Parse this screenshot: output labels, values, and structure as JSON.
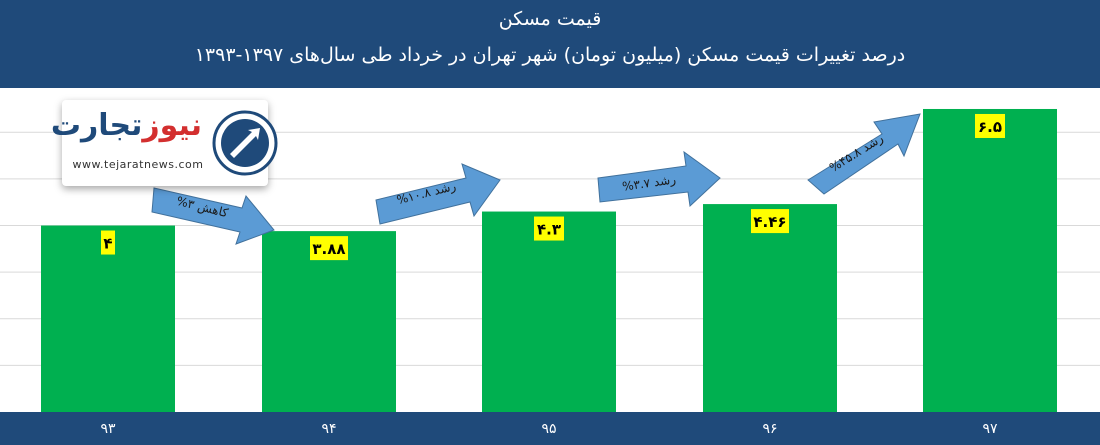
{
  "header": {
    "title": "قیمت مسکن",
    "subtitle": "درصد تغییرات قیمت مسکن (میلیون تومان) شهر تهران در خرداد طی سال‌های ۱۳۹۷-۱۳۹۳"
  },
  "logo": {
    "name_part1": "تجارت",
    "name_part2": "نیوز",
    "url": "www.tejaratnews.com"
  },
  "colors": {
    "header_bg": "#1f4a7a",
    "bar": "#00b050",
    "label_bg": "#ffff00",
    "arrow": "#5b9bd5"
  },
  "chart_data": {
    "type": "bar",
    "categories": [
      "۹۳",
      "۹۴",
      "۹۵",
      "۹۶",
      "۹۷"
    ],
    "values": [
      4,
      3.88,
      4.3,
      4.46,
      6.5
    ],
    "value_labels": [
      "۴",
      "۳.۸۸",
      "۴.۳",
      "۴.۴۶",
      "۶.۵"
    ],
    "title": "قیمت مسکن",
    "subtitle": "درصد تغییرات قیمت مسکن (میلیون تومان) شهر تهران در خرداد طی سال‌های ۱۳۹۷-۱۳۹۳",
    "xlabel": "",
    "ylabel": "",
    "ylim": [
      0,
      6.95
    ],
    "grid": true,
    "annotations": [
      {
        "text": "کاهش ۳%",
        "from": "۹۳",
        "to": "۹۴"
      },
      {
        "text": "رشد ۱۰.۸%",
        "from": "۹۴",
        "to": "۹۵"
      },
      {
        "text": "رشد ۳.۷%",
        "from": "۹۵",
        "to": "۹۶"
      },
      {
        "text": "رشد ۴۵.۸%",
        "from": "۹۶",
        "to": "۹۷"
      }
    ]
  }
}
